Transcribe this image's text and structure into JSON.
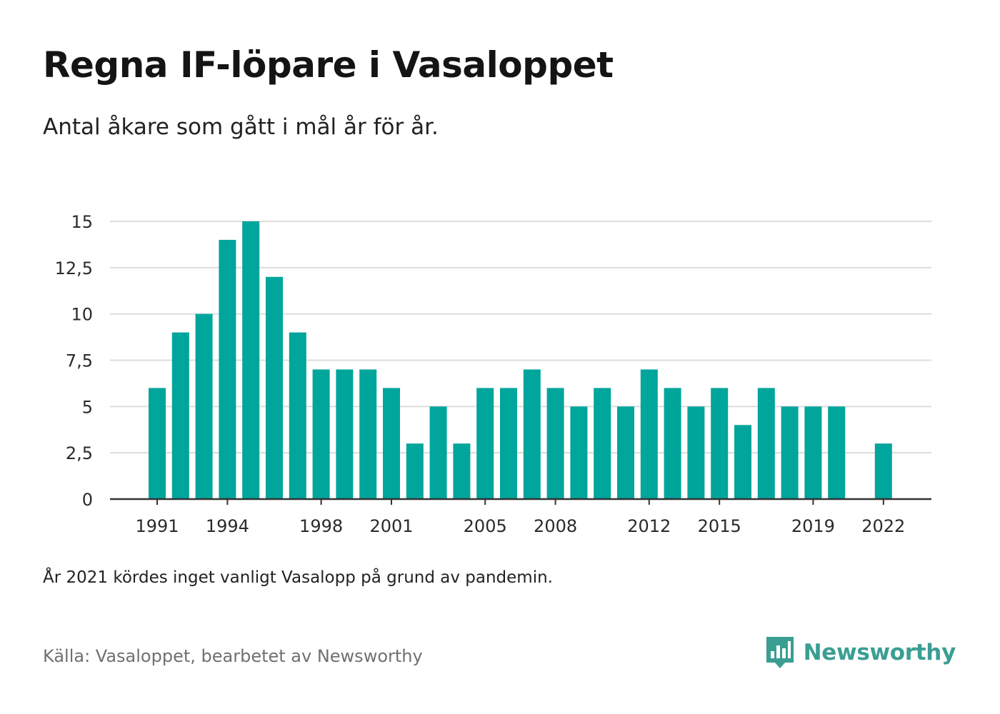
{
  "title": "Regna IF-löpare i Vasaloppet",
  "subtitle": "Antal åkare som gått i mål år för år.",
  "note": "År 2021 kördes inget vanligt Vasalopp på grund av pandemin.",
  "source": "Källa: Vasaloppet, bearbetet av Newsworthy",
  "brand": {
    "name": "Newsworthy",
    "icon": "newsworthy-logo-icon",
    "color": "#3a9e93"
  },
  "chart_data": {
    "type": "bar",
    "color": "#00a59b",
    "categories": [
      1991,
      1992,
      1993,
      1994,
      1995,
      1996,
      1997,
      1998,
      1999,
      2000,
      2001,
      2002,
      2003,
      2004,
      2005,
      2006,
      2007,
      2008,
      2009,
      2010,
      2011,
      2012,
      2013,
      2014,
      2015,
      2016,
      2017,
      2018,
      2019,
      2020,
      2021,
      2022
    ],
    "values": [
      6,
      9,
      10,
      14,
      15,
      12,
      9,
      7,
      7,
      7,
      6,
      3,
      5,
      3,
      6,
      6,
      7,
      6,
      5,
      6,
      5,
      7,
      6,
      5,
      6,
      4,
      6,
      5,
      5,
      5,
      null,
      3
    ],
    "x_tick_labels": [
      "1991",
      "1994",
      "1998",
      "2001",
      "2005",
      "2008",
      "2012",
      "2015",
      "2019",
      "2022"
    ],
    "y_ticks": [
      0,
      2.5,
      5,
      7.5,
      10,
      12.5,
      15
    ],
    "y_tick_labels": [
      "0",
      "2,5",
      "5",
      "7,5",
      "10",
      "12,5",
      "15"
    ],
    "ylim": [
      0,
      15
    ],
    "grid": true,
    "xlabel": "",
    "ylabel": ""
  }
}
